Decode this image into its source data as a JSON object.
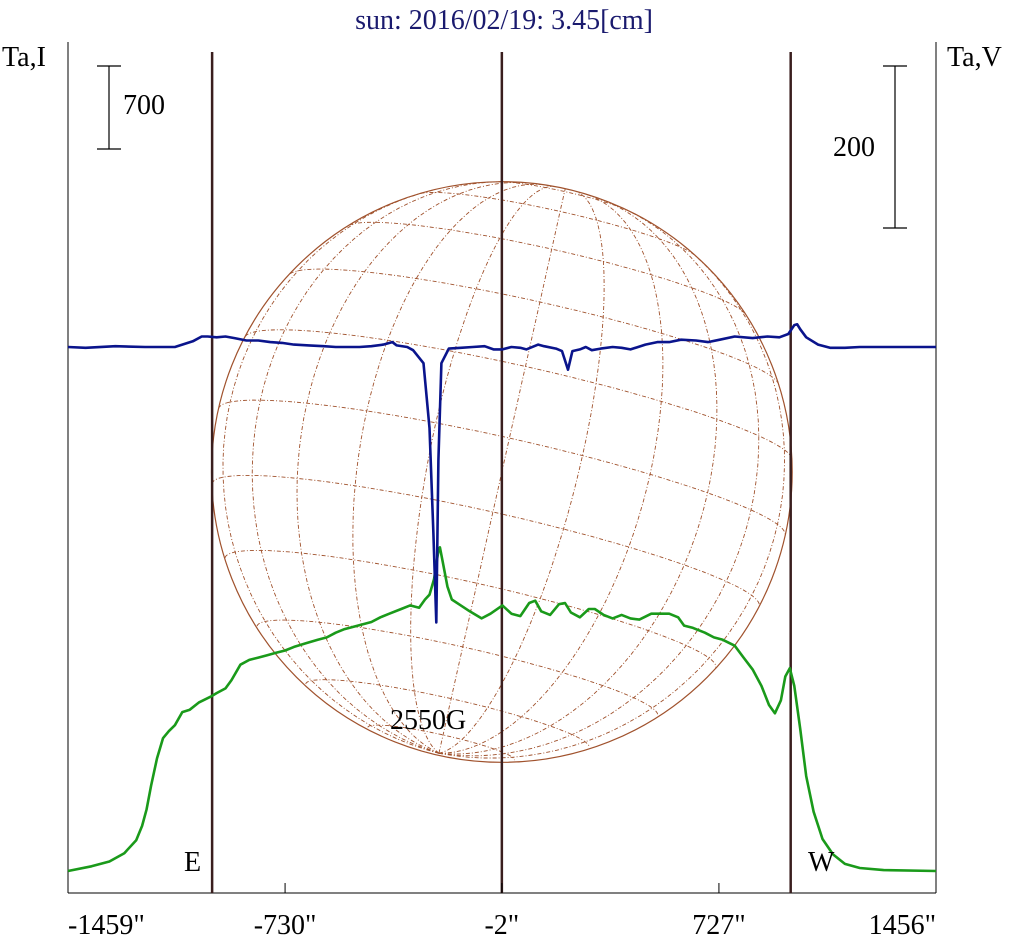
{
  "title": "sun: 2016/02/19: 3.45[cm]",
  "left_axis_label": "Ta,I",
  "right_axis_label": "Ta,V",
  "scale_bar_left": "700",
  "scale_bar_right": "200",
  "limb_label_east": "E",
  "limb_label_west": "W",
  "annotation": "2550G",
  "colors": {
    "title": "#1a1a6e",
    "intensity": "#1a9a1a",
    "polarization": "#0a148c",
    "limb_lines": "#3a1e1e",
    "disk": "#a0522d",
    "frame": "#000000"
  },
  "chart_data": {
    "type": "line",
    "title": "sun: 2016/02/19: 3.45[cm]",
    "x_ticks": [
      "-1459\"",
      "-730\"",
      "-2\"",
      "727\"",
      "1456\""
    ],
    "x_tick_values": [
      -1459,
      -730,
      -2,
      727,
      1456
    ],
    "xlim": [
      -1459,
      1456
    ],
    "vertical_lines": [
      -975,
      -2,
      968
    ],
    "solar_disk_radius_arcsec": 975,
    "series": [
      {
        "name": "Ta,I",
        "points": [
          [
            -1459,
            0
          ],
          [
            -1380,
            40
          ],
          [
            -1320,
            80
          ],
          [
            -1270,
            150
          ],
          [
            -1230,
            260
          ],
          [
            -1210,
            380
          ],
          [
            -1195,
            520
          ],
          [
            -1180,
            720
          ],
          [
            -1160,
            950
          ],
          [
            -1140,
            1120
          ],
          [
            -1120,
            1180
          ],
          [
            -1100,
            1230
          ],
          [
            -1075,
            1340
          ],
          [
            -1050,
            1360
          ],
          [
            -1020,
            1420
          ],
          [
            -980,
            1470
          ],
          [
            -960,
            1500
          ],
          [
            -930,
            1540
          ],
          [
            -910,
            1610
          ],
          [
            -880,
            1740
          ],
          [
            -850,
            1780
          ],
          [
            -820,
            1800
          ],
          [
            -790,
            1820
          ],
          [
            -760,
            1840
          ],
          [
            -730,
            1860
          ],
          [
            -700,
            1890
          ],
          [
            -660,
            1920
          ],
          [
            -620,
            1950
          ],
          [
            -590,
            1970
          ],
          [
            -560,
            2010
          ],
          [
            -530,
            2040
          ],
          [
            -500,
            2060
          ],
          [
            -470,
            2080
          ],
          [
            -440,
            2100
          ],
          [
            -410,
            2140
          ],
          [
            -380,
            2170
          ],
          [
            -340,
            2210
          ],
          [
            -310,
            2240
          ],
          [
            -280,
            2220
          ],
          [
            -260,
            2290
          ],
          [
            -245,
            2330
          ],
          [
            -230,
            2460
          ],
          [
            -215,
            2700
          ],
          [
            -210,
            2730
          ],
          [
            -200,
            2600
          ],
          [
            -185,
            2400
          ],
          [
            -170,
            2290
          ],
          [
            -140,
            2240
          ],
          [
            -110,
            2190
          ],
          [
            -70,
            2130
          ],
          [
            -40,
            2170
          ],
          [
            0,
            2240
          ],
          [
            30,
            2170
          ],
          [
            60,
            2150
          ],
          [
            90,
            2260
          ],
          [
            110,
            2280
          ],
          [
            130,
            2190
          ],
          [
            160,
            2160
          ],
          [
            190,
            2250
          ],
          [
            210,
            2260
          ],
          [
            230,
            2180
          ],
          [
            260,
            2140
          ],
          [
            290,
            2210
          ],
          [
            310,
            2210
          ],
          [
            340,
            2160
          ],
          [
            370,
            2130
          ],
          [
            400,
            2160
          ],
          [
            430,
            2130
          ],
          [
            460,
            2120
          ],
          [
            500,
            2170
          ],
          [
            560,
            2170
          ],
          [
            590,
            2140
          ],
          [
            610,
            2070
          ],
          [
            640,
            2050
          ],
          [
            680,
            2010
          ],
          [
            710,
            1970
          ],
          [
            740,
            1950
          ],
          [
            780,
            1900
          ],
          [
            810,
            1800
          ],
          [
            840,
            1700
          ],
          [
            870,
            1560
          ],
          [
            895,
            1400
          ],
          [
            915,
            1330
          ],
          [
            935,
            1440
          ],
          [
            950,
            1640
          ],
          [
            965,
            1710
          ],
          [
            980,
            1560
          ],
          [
            1000,
            1200
          ],
          [
            1020,
            800
          ],
          [
            1045,
            500
          ],
          [
            1075,
            270
          ],
          [
            1110,
            140
          ],
          [
            1150,
            60
          ],
          [
            1200,
            25
          ],
          [
            1280,
            8
          ],
          [
            1456,
            0
          ]
        ]
      },
      {
        "name": "Ta,V",
        "points": [
          [
            -1459,
            0
          ],
          [
            -1400,
            -1
          ],
          [
            -1300,
            1
          ],
          [
            -1200,
            0
          ],
          [
            -1100,
            0
          ],
          [
            -1040,
            7
          ],
          [
            -1010,
            13
          ],
          [
            -990,
            13
          ],
          [
            -960,
            12
          ],
          [
            -930,
            13
          ],
          [
            -900,
            11
          ],
          [
            -860,
            8
          ],
          [
            -820,
            8
          ],
          [
            -780,
            6
          ],
          [
            -740,
            5
          ],
          [
            -700,
            3
          ],
          [
            -650,
            2
          ],
          [
            -600,
            1
          ],
          [
            -560,
            0
          ],
          [
            -520,
            0
          ],
          [
            -480,
            0
          ],
          [
            -440,
            1
          ],
          [
            -400,
            3
          ],
          [
            -370,
            6
          ],
          [
            -355,
            2
          ],
          [
            -320,
            0
          ],
          [
            -300,
            -4
          ],
          [
            -265,
            -20
          ],
          [
            -245,
            -100
          ],
          [
            -232,
            -230
          ],
          [
            -222,
            -340
          ],
          [
            -215,
            -140
          ],
          [
            -205,
            -20
          ],
          [
            -180,
            -2
          ],
          [
            -140,
            -1
          ],
          [
            -100,
            0
          ],
          [
            -60,
            1
          ],
          [
            -30,
            -3
          ],
          [
            0,
            -3
          ],
          [
            30,
            0
          ],
          [
            60,
            -1
          ],
          [
            80,
            -3
          ],
          [
            120,
            3
          ],
          [
            140,
            1
          ],
          [
            180,
            -2
          ],
          [
            200,
            -5
          ],
          [
            220,
            -28
          ],
          [
            235,
            -5
          ],
          [
            260,
            -3
          ],
          [
            280,
            0
          ],
          [
            300,
            -4
          ],
          [
            330,
            -2
          ],
          [
            370,
            0
          ],
          [
            400,
            -1
          ],
          [
            430,
            -3
          ],
          [
            480,
            3
          ],
          [
            520,
            6
          ],
          [
            560,
            6
          ],
          [
            600,
            9
          ],
          [
            650,
            8
          ],
          [
            690,
            6
          ],
          [
            730,
            9
          ],
          [
            780,
            13
          ],
          [
            840,
            11
          ],
          [
            890,
            13
          ],
          [
            930,
            12
          ],
          [
            960,
            16
          ],
          [
            980,
            27
          ],
          [
            990,
            28
          ],
          [
            1000,
            22
          ],
          [
            1020,
            12
          ],
          [
            1060,
            3
          ],
          [
            1100,
            -1
          ],
          [
            1150,
            -1
          ],
          [
            1200,
            0
          ],
          [
            1300,
            0
          ],
          [
            1456,
            0
          ]
        ]
      }
    ]
  }
}
